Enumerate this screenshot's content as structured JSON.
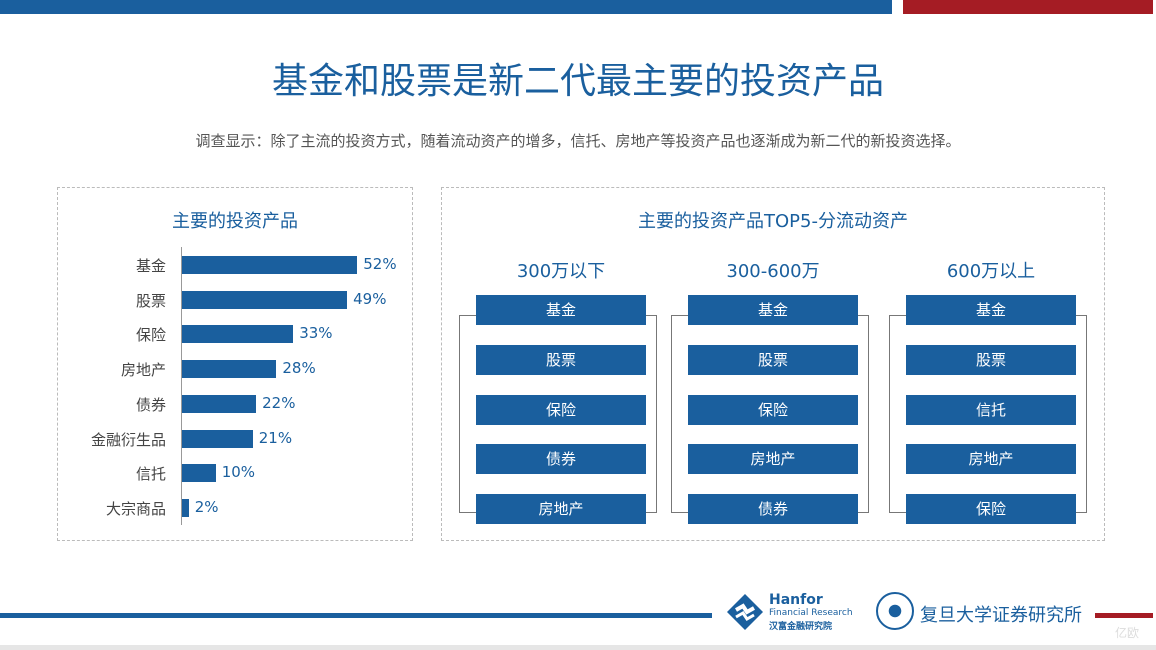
{
  "title": "基金和股票是新二代最主要的投资产品",
  "subtitle": "调查显示：除了主流的投资方式，随着流动资产的增多，信托、房地产等投资产品也逐渐成为新二代的新投资选择。",
  "left_panel": {
    "title": "主要的投资产品"
  },
  "chart_data": {
    "type": "bar",
    "orientation": "horizontal",
    "title": "主要的投资产品",
    "categories": [
      "基金",
      "股票",
      "保险",
      "房地产",
      "债券",
      "金融衍生品",
      "信托",
      "大宗商品"
    ],
    "values": [
      52,
      49,
      33,
      28,
      22,
      21,
      10,
      2
    ],
    "labels": [
      "52%",
      "49%",
      "33%",
      "28%",
      "22%",
      "21%",
      "10%",
      "2%"
    ],
    "color": "#1a5f9e"
  },
  "right_panel": {
    "title": "主要的投资产品TOP5-分流动资产",
    "columns": [
      {
        "header": "300万以下",
        "items": [
          "基金",
          "股票",
          "保险",
          "债券",
          "房地产"
        ]
      },
      {
        "header": "300-600万",
        "items": [
          "基金",
          "股票",
          "保险",
          "房地产",
          "债券"
        ]
      },
      {
        "header": "600万以上",
        "items": [
          "基金",
          "股票",
          "信托",
          "房地产",
          "保险"
        ]
      }
    ]
  },
  "footer": {
    "hanfor": {
      "name": "Hanfor",
      "sub": "Financial Research",
      "cn": "汉富金融研究院"
    },
    "fudan": "复旦大学证券研究所",
    "watermark": "亿欧"
  },
  "colors": {
    "brand_blue": "#1a5f9e",
    "brand_red": "#a51c24"
  }
}
